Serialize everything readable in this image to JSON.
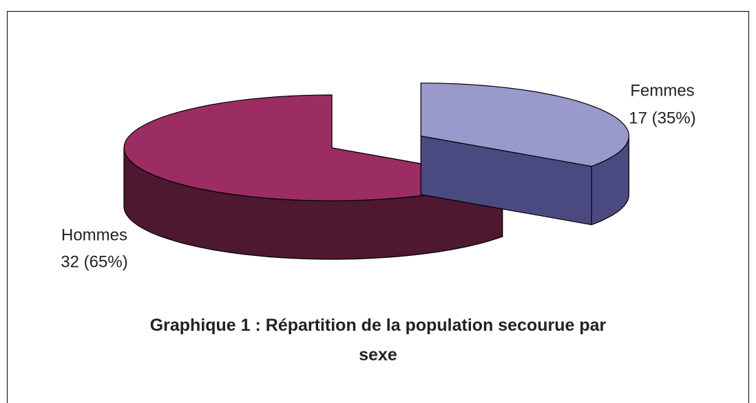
{
  "chart_data": {
    "type": "pie",
    "title": "Graphique 1 : Répartition de la population secourue par sexe",
    "categories": [
      "Femmes",
      "Hommes"
    ],
    "values": [
      17,
      32
    ],
    "value_labels": [
      "17 (35%)",
      "32 (65%)"
    ],
    "colors": [
      "#9999cc",
      "#9b2d62"
    ],
    "side_colors": [
      "#4b4a80",
      "#4d1830"
    ]
  }
}
